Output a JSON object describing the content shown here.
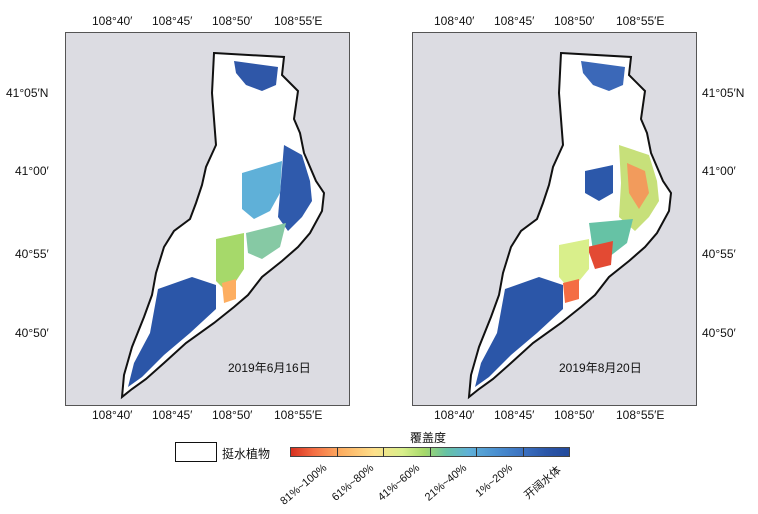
{
  "maps": [
    {
      "date_label": "2019年6月16日",
      "top_ticks": [
        "108°40′",
        "108°45′",
        "108°50′",
        "108°55′E"
      ],
      "bottom_ticks": [
        "108°40′",
        "108°45′",
        "108°50′",
        "108°55′E"
      ],
      "left_ticks": [
        "41°05′N",
        "41°00′",
        "40°55′",
        "40°50′"
      ]
    },
    {
      "date_label": "2019年8月20日",
      "top_ticks": [
        "108°40′",
        "108°45′",
        "108°50′",
        "108°55′E"
      ],
      "bottom_ticks": [
        "108°40′",
        "108°45′",
        "108°50′",
        "108°55′E"
      ],
      "right_ticks": [
        "41°05′N",
        "41°00′",
        "40°55′",
        "40°50′"
      ]
    }
  ],
  "legend": {
    "lake_label": "挺水植物",
    "colorbar_title": "覆盖度",
    "classes": [
      "81%~100%",
      "61%~80%",
      "41%~60%",
      "21%~40%",
      "1%~20%",
      "开阔水体"
    ]
  },
  "colors": {
    "background": "#dcdce2",
    "lake_fill": "#ffffff",
    "outline": "#111111",
    "high_coverage": "#d7301f",
    "open_water": "#234a9c"
  }
}
